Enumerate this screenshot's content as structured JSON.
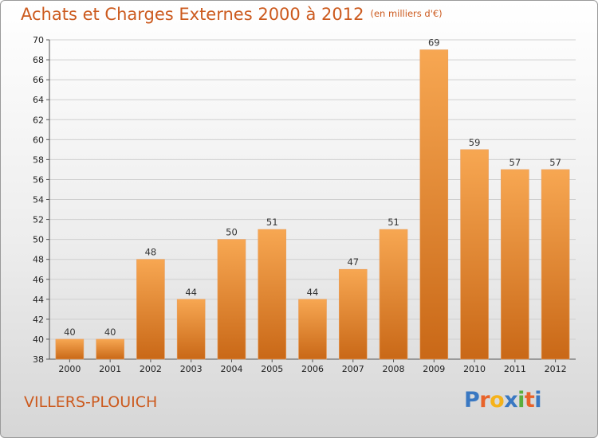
{
  "header": {
    "title": "Achats et Charges Externes 2000 à 2012",
    "subtitle": "(en milliers d'€)"
  },
  "commune": "VILLERS-PLOUICH",
  "logo": {
    "text": "Proxiti",
    "letters": [
      "P",
      "r",
      "o",
      "x",
      "i",
      "t",
      "i"
    ],
    "colors": [
      "#3a78c2",
      "#e8632a",
      "#f5b21a",
      "#3a78c2",
      "#5aae3c",
      "#e8632a",
      "#3a78c2"
    ]
  },
  "colors": {
    "bar_top": "#f7a752",
    "bar_bottom": "#c96817",
    "accent": "#cc5a1e",
    "grid": "#cfcfcf"
  },
  "chart_data": {
    "type": "bar",
    "title": "Achats et Charges Externes 2000 à 2012",
    "subtitle": "(en milliers d'€)",
    "categories": [
      "2000",
      "2001",
      "2002",
      "2003",
      "2004",
      "2005",
      "2006",
      "2007",
      "2008",
      "2009",
      "2010",
      "2011",
      "2012"
    ],
    "values": [
      40,
      40,
      48,
      44,
      50,
      51,
      44,
      47,
      51,
      69,
      59,
      57,
      57
    ],
    "ylim": [
      38,
      70
    ],
    "yticks": [
      38,
      40,
      42,
      44,
      46,
      48,
      50,
      52,
      54,
      56,
      58,
      60,
      62,
      64,
      66,
      68,
      70
    ],
    "grid": true,
    "data_labels": true
  }
}
